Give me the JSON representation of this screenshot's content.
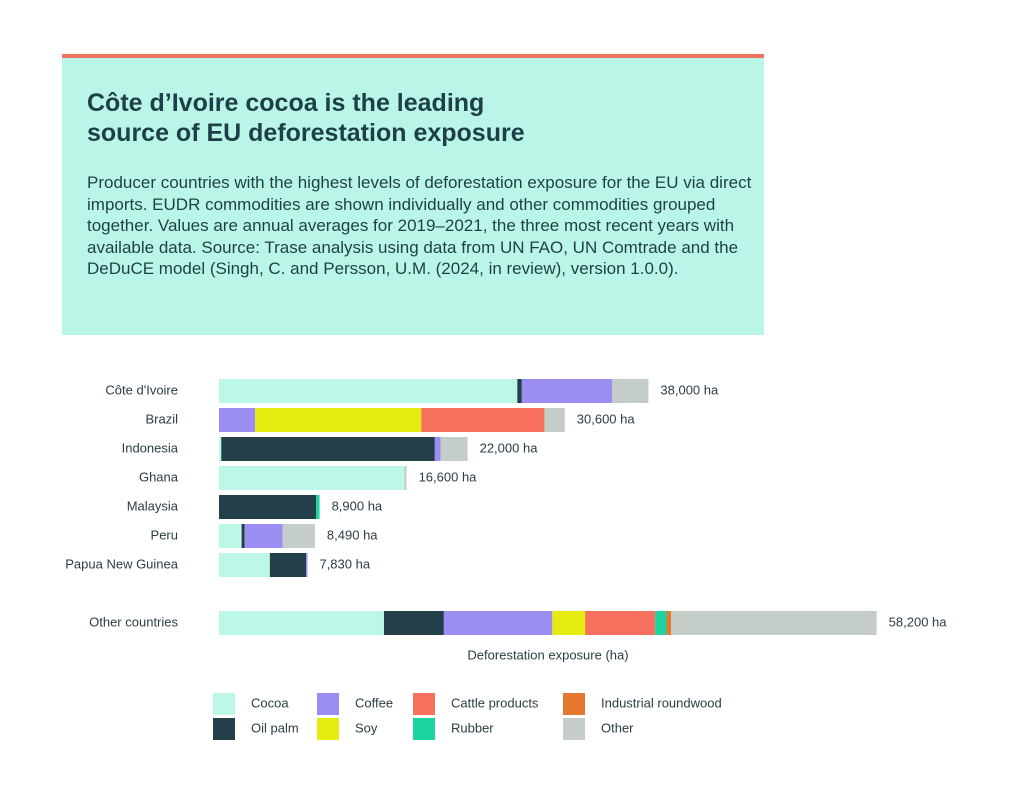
{
  "chart_data": {
    "type": "stacked_barh",
    "title": "Côte d’Ivoire cocoa is the leading source of EU deforestation exposure",
    "subtitle": "Producer countries with the highest levels of deforestation exposure for the EU via direct imports. EUDR commodities are shown individually and other commodities grouped together. Values are annual averages for 2019–2021, the three most recent years with available data. Source: Trase analysis using data from UN FAO, UN Comtrade and the DeDuCE model (Singh, C. and Persson, U.M. (2024, in review), version 1.0.0).",
    "x_label": "Deforestation exposure (ha)",
    "categories": [
      "Côte d'Ivoire",
      "Brazil",
      "Indonesia",
      "Ghana",
      "Malaysia",
      "Peru",
      "Papua New Guinea",
      "Other countries"
    ],
    "series": [
      {
        "name": "Cocoa",
        "color": "#bdf7e8",
        "values": [
          26400,
          0,
          200,
          16400,
          0,
          2000,
          4500,
          14600
        ]
      },
      {
        "name": "Oil palm",
        "color": "#233f4a",
        "values": [
          400,
          0,
          18900,
          0,
          8600,
          270,
          3200,
          5300
        ]
      },
      {
        "name": "Coffee",
        "color": "#9b8ef2",
        "values": [
          8000,
          3200,
          500,
          0,
          0,
          3370,
          130,
          9600
        ]
      },
      {
        "name": "Soy",
        "color": "#e6ec10",
        "values": [
          0,
          14700,
          0,
          0,
          0,
          0,
          0,
          2900
        ]
      },
      {
        "name": "Cattle products",
        "color": "#f7705d",
        "values": [
          0,
          10900,
          0,
          0,
          0,
          0,
          0,
          6200
        ]
      },
      {
        "name": "Rubber",
        "color": "#1dd3a0",
        "values": [
          0,
          0,
          0,
          0,
          300,
          0,
          0,
          1000
        ]
      },
      {
        "name": "Industrial roundwood",
        "color": "#e3782e",
        "values": [
          0,
          0,
          0,
          0,
          0,
          0,
          0,
          400
        ]
      },
      {
        "name": "Other",
        "color": "#c4cdc8",
        "values": [
          3200,
          1800,
          2400,
          200,
          0,
          2850,
          0,
          18200
        ]
      }
    ],
    "totals": [
      38000,
      30600,
      22000,
      16600,
      8900,
      8490,
      7830,
      58200
    ],
    "total_labels": [
      "38,000 ha",
      "30,600 ha",
      "22,000 ha",
      "16,600 ha",
      "8,900 ha",
      "8,490 ha",
      "7,830 ha",
      "58,200 ha"
    ],
    "xlim": [
      0,
      60000
    ]
  }
}
